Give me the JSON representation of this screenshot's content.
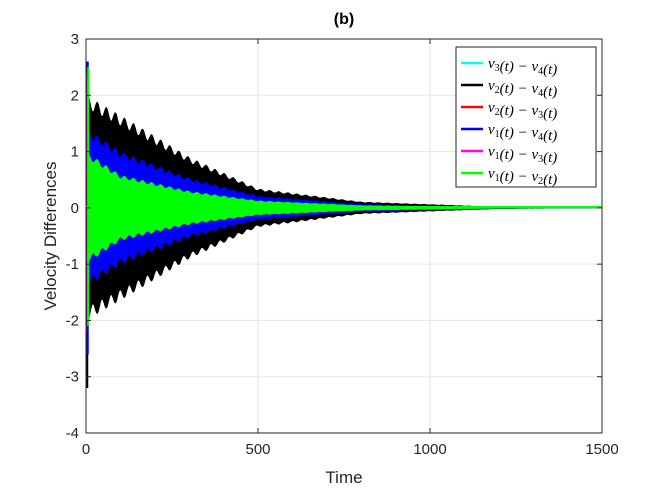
{
  "chart_data": {
    "type": "area",
    "title": "(b)",
    "xlabel": "Time",
    "ylabel": "Velocity Differences",
    "xlim": [
      0,
      1500
    ],
    "ylim": [
      -4,
      3
    ],
    "xticks": [
      "0",
      "500",
      "1000",
      "1500"
    ],
    "yticks": [
      "3",
      "2",
      "1",
      "0",
      "-1",
      "-2",
      "-3",
      "-4"
    ],
    "grid": true,
    "legend_position": "top-right",
    "description_of_form": "oscillating differences whose envelope decays toward zero over time",
    "series": [
      {
        "name": "v_3(t) − v_4(t)",
        "color": "#00ffff",
        "peak": 2.6,
        "trough": -2.6,
        "env_x": [
          10,
          100,
          300,
          500,
          800,
          1200,
          1500
        ],
        "env_y": [
          1.6,
          0.9,
          0.45,
          0.25,
          0.08,
          0.01,
          0.0
        ]
      },
      {
        "name": "v_2(t) − v_4(t)",
        "color": "#000000",
        "peak": 2.6,
        "trough": -3.2,
        "env_x": [
          10,
          100,
          300,
          500,
          800,
          1200,
          1500
        ],
        "env_y": [
          1.85,
          1.55,
          0.85,
          0.32,
          0.1,
          0.015,
          0.0
        ]
      },
      {
        "name": "v_2(t) − v_3(t)",
        "color": "#ff0000",
        "peak": 2.4,
        "trough": -2.2,
        "env_x": [
          10,
          100,
          300,
          500,
          800,
          1200,
          1500
        ],
        "env_y": [
          1.5,
          0.8,
          0.4,
          0.2,
          0.06,
          0.01,
          0.0
        ]
      },
      {
        "name": "v_1(t) − v_4(t)",
        "color": "#0000ff",
        "peak": 2.6,
        "trough": -2.6,
        "env_x": [
          10,
          100,
          300,
          500,
          800,
          1200,
          1500
        ],
        "env_y": [
          1.3,
          0.95,
          0.5,
          0.2,
          0.06,
          0.01,
          0.0
        ]
      },
      {
        "name": "v_1(t) − v_3(t)",
        "color": "#ff00ff",
        "peak": 2.3,
        "trough": -2.0,
        "env_x": [
          10,
          100,
          300,
          500,
          800,
          1200,
          1500
        ],
        "env_y": [
          0.9,
          0.55,
          0.28,
          0.12,
          0.04,
          0.008,
          0.0
        ]
      },
      {
        "name": "v_1(t) − v_2(t)",
        "color": "#00ff00",
        "peak": 2.5,
        "trough": -2.1,
        "env_x": [
          10,
          100,
          300,
          500,
          800,
          1200,
          1500
        ],
        "env_y": [
          0.9,
          0.55,
          0.28,
          0.12,
          0.04,
          0.008,
          0.0
        ]
      }
    ],
    "legend_entries": [
      {
        "base": "v",
        "sub1": "3",
        "mid": "(t) − v",
        "sub2": "4",
        "tail": "(t)",
        "color": "#00ffff"
      },
      {
        "base": "v",
        "sub1": "2",
        "mid": "(t) − v",
        "sub2": "4",
        "tail": "(t)",
        "color": "#000000"
      },
      {
        "base": "v",
        "sub1": "2",
        "mid": "(t) − v",
        "sub2": "3",
        "tail": "(t)",
        "color": "#ff0000"
      },
      {
        "base": "v",
        "sub1": "1",
        "mid": "(t) − v",
        "sub2": "4",
        "tail": "(t)",
        "color": "#0000ff"
      },
      {
        "base": "v",
        "sub1": "1",
        "mid": "(t) − v",
        "sub2": "3",
        "tail": "(t)",
        "color": "#ff00ff"
      },
      {
        "base": "v",
        "sub1": "1",
        "mid": "(t) − v",
        "sub2": "2",
        "tail": "(t)",
        "color": "#00ff00"
      }
    ]
  }
}
